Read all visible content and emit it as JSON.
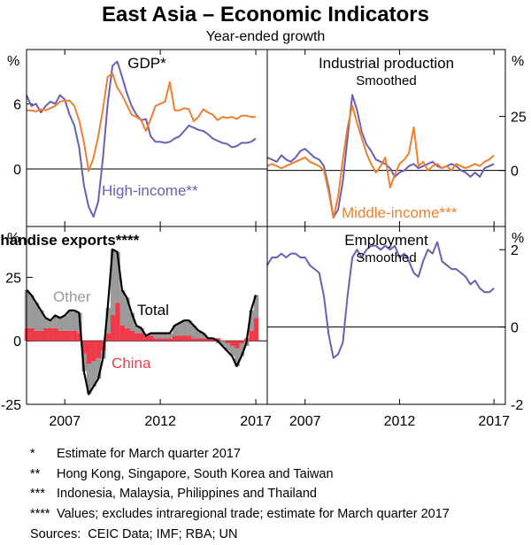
{
  "title": "East Asia – Economic Indicators",
  "subtitle": "Year-ended growth",
  "colors": {
    "high_income": "#6a5fb3",
    "middle_income": "#ef7f2e",
    "china": "#ef3a4a",
    "other": "#9a9a9a",
    "total": "#000000",
    "employment": "#6a5fb3"
  },
  "chart_data": [
    {
      "id": "gdp",
      "type": "line",
      "title": "GDP*",
      "subtitle": "",
      "ylabel": "%",
      "axis_side": "left",
      "ylim": [
        -5.3,
        11
      ],
      "yticks": [
        0,
        6
      ],
      "xlim": [
        2005.0,
        2017.6
      ],
      "grid": false,
      "series": [
        {
          "name": "High-income**",
          "color_key": "high_income",
          "x": [
            2005.0,
            2005.25,
            2005.5,
            2005.75,
            2006.0,
            2006.25,
            2006.5,
            2006.75,
            2007.0,
            2007.25,
            2007.5,
            2007.75,
            2008.0,
            2008.25,
            2008.5,
            2008.75,
            2009.0,
            2009.25,
            2009.5,
            2009.75,
            2010.0,
            2010.25,
            2010.5,
            2010.75,
            2011.0,
            2011.25,
            2011.5,
            2011.75,
            2012.0,
            2012.25,
            2012.5,
            2012.75,
            2013.0,
            2013.25,
            2013.5,
            2013.75,
            2014.0,
            2014.25,
            2014.5,
            2014.75,
            2015.0,
            2015.25,
            2015.5,
            2015.75,
            2016.0,
            2016.25,
            2016.5,
            2016.75,
            2017.0
          ],
          "y": [
            6.8,
            5.8,
            6.0,
            5.2,
            5.8,
            6.2,
            6.0,
            6.8,
            6.4,
            5.0,
            4.0,
            2.0,
            -1.5,
            -3.5,
            -4.4,
            -3.0,
            1.0,
            6.0,
            9.5,
            9.9,
            8.5,
            7.0,
            5.8,
            5.0,
            4.5,
            4.6,
            3.0,
            2.5,
            2.5,
            2.4,
            2.5,
            2.8,
            3.0,
            3.5,
            4.0,
            3.8,
            3.6,
            3.5,
            3.2,
            2.8,
            2.6,
            2.4,
            2.3,
            2.0,
            2.1,
            2.4,
            2.4,
            2.5,
            2.8
          ]
        },
        {
          "name": "Middle-income***",
          "color_key": "middle_income",
          "x": [
            2005.0,
            2005.25,
            2005.5,
            2005.75,
            2006.0,
            2006.25,
            2006.5,
            2006.75,
            2007.0,
            2007.25,
            2007.5,
            2007.75,
            2008.0,
            2008.25,
            2008.5,
            2008.75,
            2009.0,
            2009.25,
            2009.5,
            2009.75,
            2010.0,
            2010.25,
            2010.5,
            2010.75,
            2011.0,
            2011.25,
            2011.5,
            2011.75,
            2012.0,
            2012.25,
            2012.5,
            2012.75,
            2013.0,
            2013.25,
            2013.5,
            2013.75,
            2014.0,
            2014.25,
            2014.5,
            2014.75,
            2015.0,
            2015.25,
            2015.5,
            2015.75,
            2016.0,
            2016.25,
            2016.5,
            2016.75,
            2017.0
          ],
          "y": [
            5.4,
            5.4,
            5.3,
            5.5,
            5.4,
            5.6,
            5.8,
            6.2,
            6.3,
            6.3,
            5.8,
            4.5,
            2.5,
            -0.2,
            1.0,
            3.0,
            5.5,
            8.5,
            8.8,
            7.5,
            6.8,
            5.9,
            5.0,
            4.8,
            4.5,
            3.5,
            4.6,
            5.8,
            6.0,
            6.2,
            8.0,
            5.4,
            5.4,
            5.6,
            5.5,
            4.4,
            4.8,
            5.5,
            5.2,
            5.0,
            4.5,
            4.8,
            4.7,
            4.8,
            4.6,
            4.9,
            4.9,
            4.8,
            4.8
          ]
        }
      ],
      "annotations": [
        "High-income**"
      ]
    },
    {
      "id": "industrial",
      "type": "line",
      "title": "Industrial production",
      "subtitle": "Smoothed",
      "ylabel": "%",
      "axis_side": "right",
      "ylim": [
        -26,
        56
      ],
      "yticks": [
        0,
        25
      ],
      "xlim": [
        2005.0,
        2017.6
      ],
      "grid": false,
      "series": [
        {
          "name": "High-income",
          "color_key": "high_income",
          "x": [
            2005.0,
            2005.25,
            2005.5,
            2005.75,
            2006.0,
            2006.25,
            2006.5,
            2006.75,
            2007.0,
            2007.25,
            2007.5,
            2007.75,
            2008.0,
            2008.25,
            2008.5,
            2008.75,
            2009.0,
            2009.25,
            2009.5,
            2009.75,
            2010.0,
            2010.25,
            2010.5,
            2010.75,
            2011.0,
            2011.25,
            2011.5,
            2011.75,
            2012.0,
            2012.25,
            2012.5,
            2012.75,
            2013.0,
            2013.25,
            2013.5,
            2013.75,
            2014.0,
            2014.25,
            2014.5,
            2014.75,
            2015.0,
            2015.25,
            2015.5,
            2015.75,
            2016.0,
            2016.25,
            2016.5,
            2016.75,
            2017.0
          ],
          "y": [
            6,
            5,
            4,
            7,
            5,
            4,
            6,
            9,
            10,
            8,
            6,
            5,
            2,
            -8,
            -22,
            -18,
            -5,
            15,
            35,
            28,
            18,
            12,
            9,
            5,
            4,
            3,
            1,
            -3,
            -1,
            0,
            2,
            3,
            1,
            2,
            3,
            4,
            2,
            1,
            2,
            3,
            2,
            0,
            -1,
            -3,
            -1,
            -3,
            1,
            2,
            3
          ]
        },
        {
          "name": "Middle-income***",
          "color_key": "middle_income",
          "x": [
            2005.0,
            2005.25,
            2005.5,
            2005.75,
            2006.0,
            2006.25,
            2006.5,
            2006.75,
            2007.0,
            2007.25,
            2007.5,
            2007.75,
            2008.0,
            2008.25,
            2008.5,
            2008.75,
            2009.0,
            2009.25,
            2009.5,
            2009.75,
            2010.0,
            2010.25,
            2010.5,
            2010.75,
            2011.0,
            2011.25,
            2011.5,
            2011.75,
            2012.0,
            2012.25,
            2012.5,
            2012.75,
            2013.0,
            2013.25,
            2013.5,
            2013.75,
            2014.0,
            2014.25,
            2014.5,
            2014.75,
            2015.0,
            2015.25,
            2015.5,
            2015.75,
            2016.0,
            2016.25,
            2016.5,
            2016.75,
            2017.0
          ],
          "y": [
            2,
            3,
            2,
            1,
            2,
            3,
            4,
            5,
            6,
            4,
            3,
            2,
            0,
            -10,
            -22,
            -12,
            5,
            20,
            30,
            22,
            15,
            8,
            3,
            -1,
            2,
            6,
            -8,
            -2,
            3,
            5,
            8,
            20,
            2,
            4,
            0,
            2,
            3,
            1,
            2,
            0,
            3,
            2,
            1,
            2,
            3,
            2,
            4,
            5,
            7
          ]
        }
      ],
      "annotations": [
        "Middle-income***"
      ]
    },
    {
      "id": "exports",
      "type": "bar",
      "title": "Merchandise exports****",
      "subtitle": "",
      "ylabel": "%",
      "axis_side": "left",
      "ylim": [
        -25,
        45
      ],
      "yticks": [
        -25,
        0,
        25
      ],
      "xlim": [
        2005.0,
        2017.6
      ],
      "grid": false,
      "x": [
        2005.0,
        2005.25,
        2005.5,
        2005.75,
        2006.0,
        2006.25,
        2006.5,
        2006.75,
        2007.0,
        2007.25,
        2007.5,
        2007.75,
        2008.0,
        2008.25,
        2008.5,
        2008.75,
        2009.0,
        2009.25,
        2009.5,
        2009.75,
        2010.0,
        2010.25,
        2010.5,
        2010.75,
        2011.0,
        2011.25,
        2011.5,
        2011.75,
        2012.0,
        2012.25,
        2012.5,
        2012.75,
        2013.0,
        2013.25,
        2013.5,
        2013.75,
        2014.0,
        2014.25,
        2014.5,
        2014.75,
        2015.0,
        2015.25,
        2015.5,
        2015.75,
        2016.0,
        2016.25,
        2016.5,
        2016.75,
        2017.0
      ],
      "series": [
        {
          "name": "China",
          "color_key": "china",
          "values": [
            5,
            5,
            4,
            4,
            5,
            5,
            5,
            4,
            4,
            4,
            4,
            3,
            -5,
            -9,
            -8,
            -7,
            -4,
            3,
            10,
            15,
            6,
            5,
            4,
            3,
            3,
            2,
            2,
            1,
            1,
            1,
            1,
            2,
            2,
            2,
            2,
            1,
            1,
            1,
            1,
            1,
            1,
            0,
            -1,
            -2,
            -3,
            -1,
            1,
            4,
            9
          ]
        },
        {
          "name": "Other",
          "color_key": "other",
          "values": [
            15,
            13,
            11,
            8,
            4,
            3,
            5,
            5,
            6,
            8,
            8,
            8,
            -7,
            -12,
            -10,
            -8,
            -3,
            10,
            26,
            20,
            14,
            12,
            7,
            3,
            2,
            0,
            1,
            2,
            2,
            2,
            2,
            4,
            5,
            6,
            6,
            5,
            3,
            2,
            0,
            0,
            -1,
            -2,
            -3,
            -4,
            -7,
            -5,
            -2,
            8,
            9
          ]
        },
        {
          "name": "Total",
          "color_key": "total",
          "kind": "line",
          "values": [
            20,
            18,
            15,
            12,
            9,
            8,
            10,
            9,
            10,
            12,
            12,
            11,
            -12,
            -21,
            -18,
            -15,
            -7,
            13,
            36,
            35,
            20,
            17,
            11,
            6,
            5,
            2,
            3,
            3,
            3,
            3,
            3,
            6,
            7,
            8,
            8,
            6,
            4,
            3,
            1,
            1,
            0,
            -2,
            -4,
            -6,
            -10,
            -6,
            -1,
            12,
            18
          ]
        }
      ],
      "annotations": [
        "Other",
        "Total",
        "China"
      ]
    },
    {
      "id": "employment",
      "type": "line",
      "title": "Employment",
      "subtitle": "Smoothed",
      "ylabel": "%",
      "axis_side": "right",
      "ylim": [
        -2,
        2.6
      ],
      "yticks": [
        -2,
        0,
        2
      ],
      "xlim": [
        2005.0,
        2017.6
      ],
      "grid": false,
      "series": [
        {
          "name": "Employment",
          "color_key": "employment",
          "x": [
            2005.0,
            2005.25,
            2005.5,
            2005.75,
            2006.0,
            2006.25,
            2006.5,
            2006.75,
            2007.0,
            2007.25,
            2007.5,
            2007.75,
            2008.0,
            2008.25,
            2008.5,
            2008.75,
            2009.0,
            2009.25,
            2009.5,
            2009.75,
            2010.0,
            2010.25,
            2010.5,
            2010.75,
            2011.0,
            2011.25,
            2011.5,
            2011.75,
            2012.0,
            2012.25,
            2012.5,
            2012.75,
            2013.0,
            2013.25,
            2013.5,
            2013.75,
            2014.0,
            2014.25,
            2014.5,
            2014.75,
            2015.0,
            2015.25,
            2015.5,
            2015.75,
            2016.0,
            2016.25,
            2016.5,
            2016.75,
            2017.0
          ],
          "y": [
            1.6,
            1.8,
            1.8,
            1.9,
            1.8,
            1.9,
            1.9,
            1.8,
            1.8,
            1.6,
            1.5,
            1.4,
            0.8,
            -0.2,
            -0.8,
            -0.7,
            -0.4,
            0.8,
            1.8,
            2.0,
            1.8,
            2.0,
            2.1,
            2.1,
            2.0,
            2.1,
            2.0,
            2.1,
            1.8,
            1.9,
            1.7,
            1.4,
            1.3,
            1.7,
            2.0,
            1.9,
            2.2,
            1.7,
            1.6,
            1.5,
            1.5,
            1.4,
            1.3,
            1.1,
            1.2,
            1.0,
            0.9,
            0.9,
            1.0
          ]
        }
      ],
      "annotations": []
    }
  ],
  "x_ticks": [
    2007,
    2012,
    2017
  ],
  "x_tick_labels": [
    "2007",
    "2012",
    "2017"
  ],
  "notes": [
    {
      "marker": "*",
      "text": "Estimate for March quarter 2017"
    },
    {
      "marker": "**",
      "text": "Hong Kong, Singapore, South Korea and Taiwan"
    },
    {
      "marker": "***",
      "text": "Indonesia, Malaysia, Philippines and Thailand"
    },
    {
      "marker": "****",
      "text": "Values; excludes intraregional trade; estimate for March quarter 2017"
    }
  ],
  "sources": {
    "label": "Sources:",
    "text": "CEIC Data; IMF; RBA; UN"
  }
}
